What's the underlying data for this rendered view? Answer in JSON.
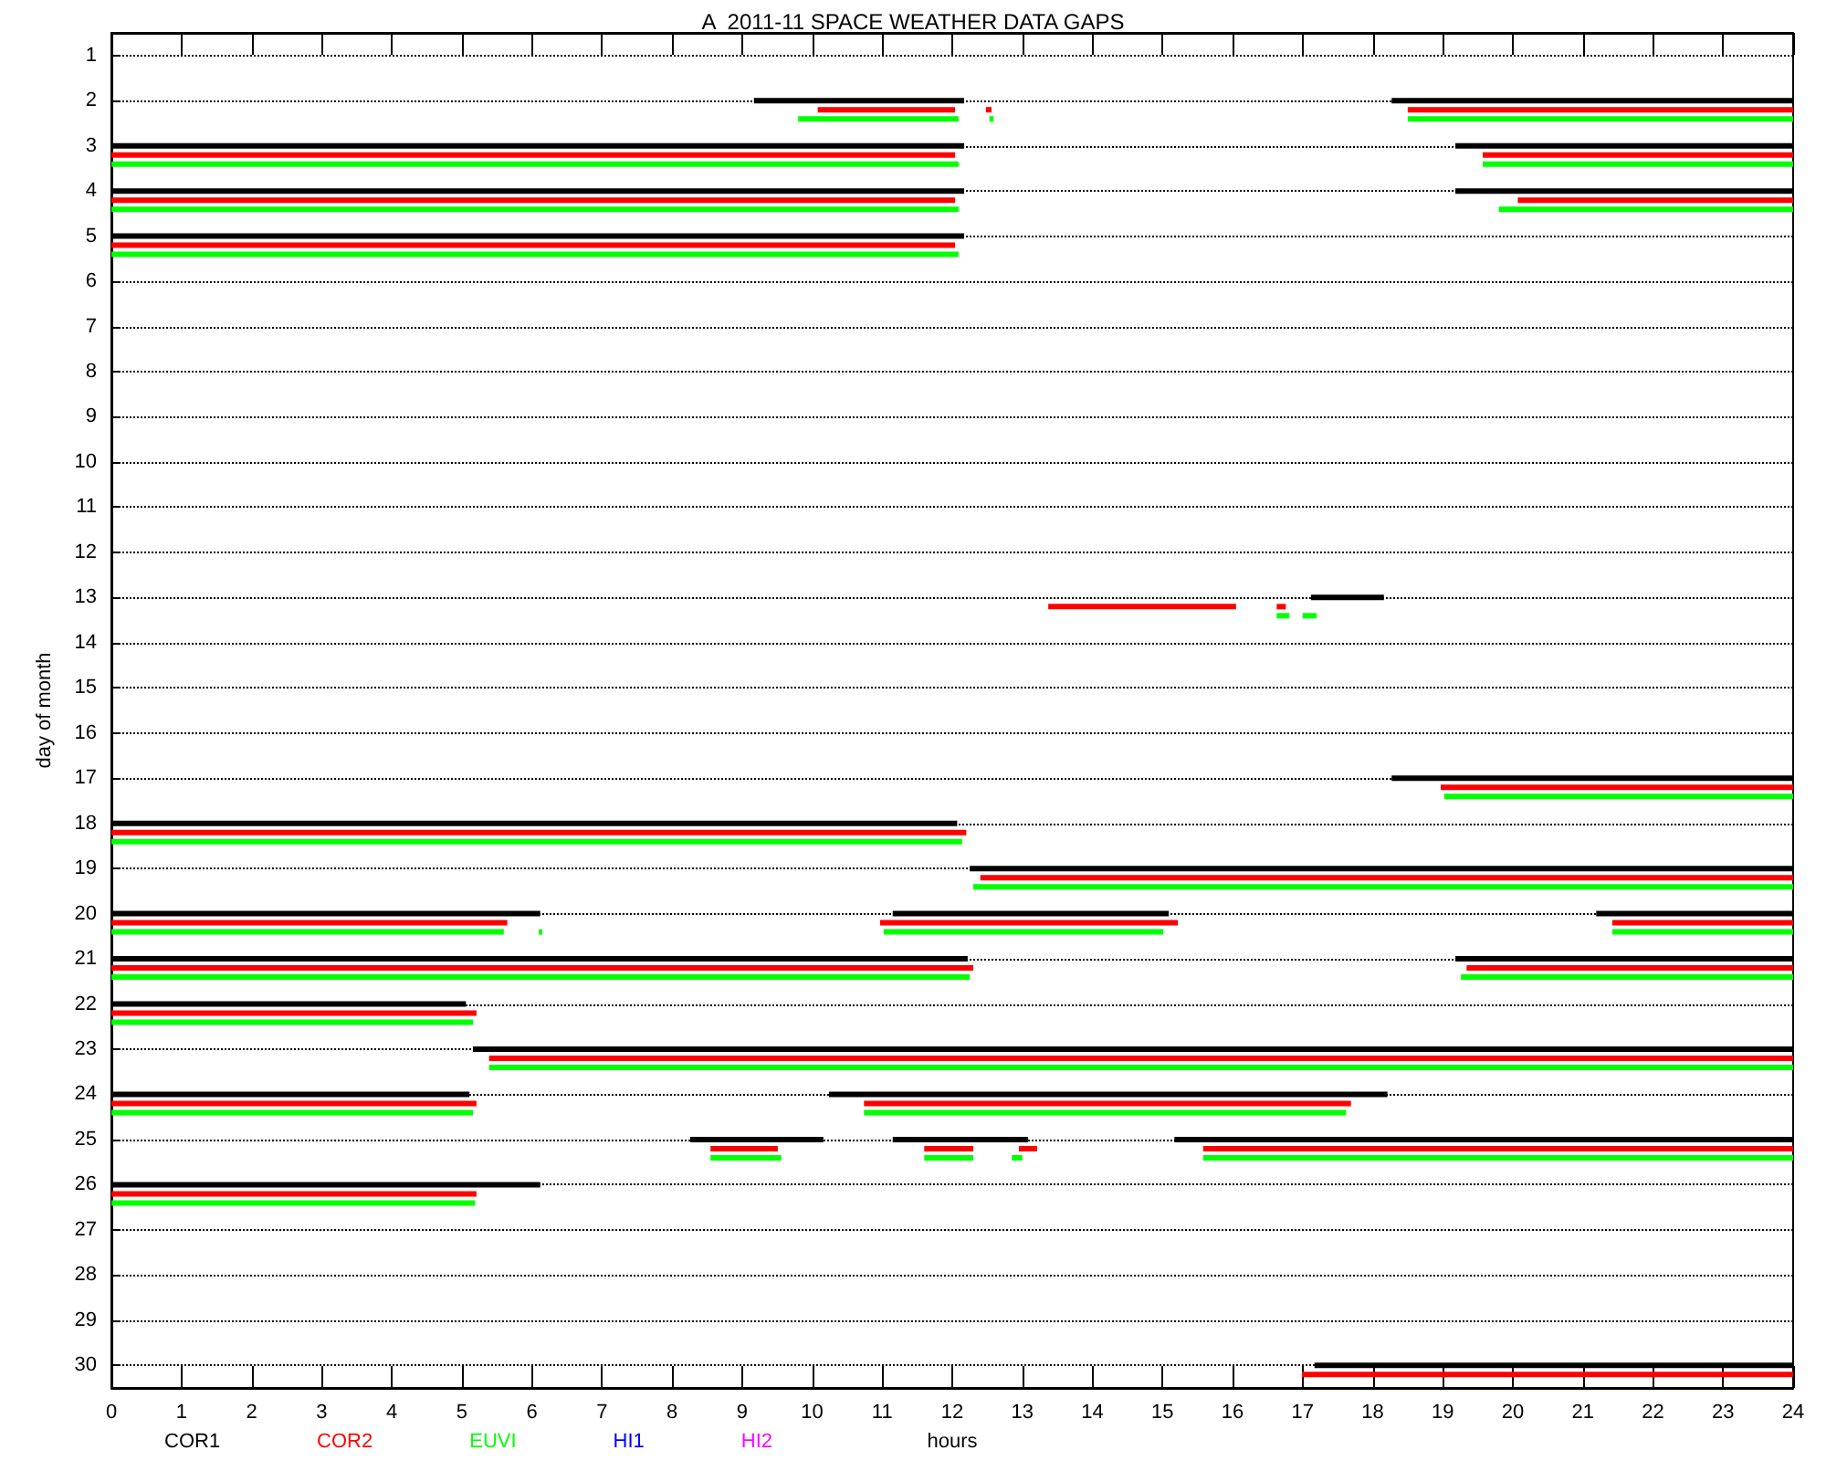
{
  "chart_data": {
    "type": "bar",
    "orientation": "horizontal",
    "title": "A  2011-11 SPACE WEATHER DATA GAPS",
    "xlabel": "hours",
    "ylabel": "day of month",
    "categories": [
      "1",
      "2",
      "3",
      "4",
      "5",
      "6",
      "7",
      "8",
      "9",
      "10",
      "11",
      "12",
      "13",
      "14",
      "15",
      "16",
      "17",
      "18",
      "19",
      "20",
      "21",
      "22",
      "23",
      "24",
      "25",
      "26",
      "27",
      "28",
      "29",
      "30"
    ],
    "xlim": [
      0,
      24
    ],
    "xticks": [
      0,
      1,
      2,
      3,
      4,
      5,
      6,
      7,
      8,
      9,
      10,
      11,
      12,
      13,
      14,
      15,
      16,
      17,
      18,
      19,
      20,
      21,
      22,
      23,
      24
    ],
    "grid": "y",
    "legend": "bottom",
    "series": [
      {
        "name": "COR1",
        "color": "#000000",
        "values": [
          null,
          3,
          12.17,
          12.17,
          12.17,
          null,
          null,
          null,
          null,
          null,
          null,
          null,
          1.04,
          null,
          null,
          null,
          5.73,
          12.07,
          11.75,
          6.12,
          12.22,
          5.06,
          18.84,
          5.11,
          1.9,
          6.12,
          null,
          null,
          null,
          6.83
        ],
        "base": [
          null,
          9.17,
          0,
          0,
          0,
          null,
          null,
          null,
          null,
          null,
          null,
          null,
          17.12,
          null,
          null,
          null,
          18.27,
          0,
          12.25,
          0,
          0,
          0,
          5.16,
          0,
          8.26,
          0,
          null,
          null,
          null,
          17.17
        ]
      },
      {
        "color": "#000000",
        "values": [
          null,
          5.73,
          4.82,
          4.82,
          null,
          null,
          null,
          null,
          null,
          null,
          null,
          null,
          null,
          null,
          null,
          null,
          null,
          null,
          null,
          3.94,
          4.82,
          null,
          null,
          7.97,
          1.93,
          null,
          null,
          null,
          null,
          null
        ],
        "base": [
          null,
          18.27,
          19.18,
          19.18,
          null,
          null,
          null,
          null,
          null,
          null,
          null,
          null,
          null,
          null,
          null,
          null,
          null,
          null,
          null,
          11.15,
          19.18,
          null,
          null,
          10.24,
          11.15,
          null,
          null,
          null,
          null,
          null
        ]
      },
      {
        "color": "#000000",
        "values": [
          null,
          null,
          null,
          null,
          null,
          null,
          null,
          null,
          null,
          null,
          null,
          null,
          null,
          null,
          null,
          null,
          null,
          null,
          null,
          2.81,
          null,
          null,
          null,
          null,
          8.83,
          null,
          null,
          null,
          null,
          null
        ],
        "base": [
          null,
          null,
          null,
          null,
          null,
          null,
          null,
          null,
          null,
          null,
          null,
          null,
          null,
          null,
          null,
          null,
          null,
          null,
          null,
          21.19,
          null,
          null,
          null,
          null,
          15.17,
          null,
          null,
          null,
          null,
          null
        ]
      },
      {
        "name": "COR2",
        "color": "#ff0000",
        "values": [
          null,
          1.96,
          12.04,
          12.04,
          12.04,
          null,
          null,
          null,
          null,
          null,
          null,
          null,
          2.68,
          null,
          null,
          null,
          5.03,
          12.2,
          11.6,
          5.65,
          12.3,
          5.21,
          18.61,
          5.21,
          0.96,
          5.21,
          null,
          null,
          null,
          7.01
        ],
        "base": [
          null,
          10.08,
          0,
          0,
          0,
          null,
          null,
          null,
          null,
          null,
          null,
          null,
          13.37,
          null,
          null,
          null,
          18.97,
          0,
          12.4,
          0,
          0,
          0,
          5.39,
          0,
          8.55,
          0,
          null,
          null,
          null,
          16.99
        ]
      },
      {
        "color": "#ff0000",
        "values": [
          null,
          0.08,
          4.43,
          3.93,
          null,
          null,
          null,
          null,
          null,
          null,
          null,
          null,
          0.13,
          null,
          null,
          null,
          null,
          null,
          null,
          4.25,
          4.66,
          null,
          null,
          6.95,
          0.7,
          null,
          null,
          null,
          null,
          null
        ],
        "base": [
          null,
          12.48,
          19.57,
          20.07,
          null,
          null,
          null,
          null,
          null,
          null,
          null,
          null,
          16.63,
          null,
          null,
          null,
          null,
          null,
          null,
          10.97,
          19.34,
          null,
          null,
          10.74,
          11.6,
          null,
          null,
          null,
          null,
          null
        ]
      },
      {
        "color": "#ff0000",
        "values": [
          null,
          5.5,
          null,
          null,
          null,
          null,
          null,
          null,
          null,
          null,
          null,
          null,
          null,
          null,
          null,
          null,
          null,
          null,
          null,
          2.58,
          null,
          null,
          null,
          null,
          0.26,
          null,
          null,
          null,
          null,
          null
        ],
        "base": [
          null,
          18.5,
          null,
          null,
          null,
          null,
          null,
          null,
          null,
          null,
          null,
          null,
          null,
          null,
          null,
          null,
          null,
          null,
          null,
          21.42,
          null,
          null,
          null,
          null,
          12.95,
          null,
          null,
          null,
          null,
          null
        ]
      },
      {
        "color": "#ff0000",
        "values": [
          null,
          null,
          null,
          null,
          null,
          null,
          null,
          null,
          null,
          null,
          null,
          null,
          null,
          null,
          null,
          null,
          null,
          null,
          null,
          null,
          null,
          null,
          null,
          null,
          8.42,
          null,
          null,
          null,
          null,
          null
        ],
        "base": [
          null,
          null,
          null,
          null,
          null,
          null,
          null,
          null,
          null,
          null,
          null,
          null,
          null,
          null,
          null,
          null,
          null,
          null,
          null,
          null,
          null,
          null,
          null,
          null,
          15.58,
          null,
          null,
          null,
          null,
          null
        ]
      },
      {
        "name": "EUVI",
        "color": "#00ff00",
        "values": [
          null,
          2.29,
          12.09,
          12.09,
          12.09,
          null,
          null,
          null,
          null,
          null,
          null,
          null,
          0.18,
          null,
          null,
          null,
          4.98,
          12.14,
          11.7,
          5.6,
          12.25,
          5.16,
          18.61,
          5.16,
          1.01,
          5.19,
          null,
          null,
          null,
          null
        ],
        "base": [
          null,
          9.8,
          0,
          0,
          0,
          null,
          null,
          null,
          null,
          null,
          null,
          null,
          16.63,
          null,
          null,
          null,
          19.02,
          0,
          12.3,
          0,
          0,
          0,
          5.39,
          0,
          8.55,
          0,
          null,
          null,
          null,
          null
        ]
      },
      {
        "color": "#00ff00",
        "values": [
          null,
          0.06,
          4.43,
          4.2,
          null,
          null,
          null,
          null,
          null,
          null,
          null,
          null,
          0.2,
          null,
          null,
          null,
          null,
          null,
          null,
          0.05,
          4.74,
          null,
          null,
          6.88,
          0.7,
          null,
          null,
          null,
          null,
          null
        ],
        "base": [
          null,
          12.53,
          19.57,
          19.8,
          null,
          null,
          null,
          null,
          null,
          null,
          null,
          null,
          17,
          null,
          null,
          null,
          null,
          null,
          null,
          6.1,
          19.26,
          null,
          null,
          10.74,
          11.6,
          null,
          null,
          null,
          null,
          null
        ]
      },
      {
        "color": "#00ff00",
        "values": [
          null,
          5.5,
          null,
          null,
          null,
          null,
          null,
          null,
          null,
          null,
          null,
          null,
          null,
          null,
          null,
          null,
          null,
          null,
          null,
          3.99,
          null,
          null,
          null,
          null,
          0.15,
          null,
          null,
          null,
          null,
          null
        ],
        "base": [
          null,
          18.5,
          null,
          null,
          null,
          null,
          null,
          null,
          null,
          null,
          null,
          null,
          null,
          null,
          null,
          null,
          null,
          null,
          null,
          11.02,
          null,
          null,
          null,
          null,
          12.85,
          null,
          null,
          null,
          null,
          null
        ]
      },
      {
        "color": "#00ff00",
        "values": [
          null,
          null,
          null,
          null,
          null,
          null,
          null,
          null,
          null,
          null,
          null,
          null,
          null,
          null,
          null,
          null,
          null,
          null,
          null,
          2.58,
          null,
          null,
          null,
          null,
          8.42,
          null,
          null,
          null,
          null,
          null
        ],
        "base": [
          null,
          null,
          null,
          null,
          null,
          null,
          null,
          null,
          null,
          null,
          null,
          null,
          null,
          null,
          null,
          null,
          null,
          null,
          null,
          21.42,
          null,
          null,
          null,
          null,
          15.58,
          null,
          null,
          null,
          null,
          null
        ]
      },
      {
        "name": "HI1",
        "color": "#0000ff",
        "values": [
          null,
          null,
          null,
          null,
          null,
          null,
          null,
          null,
          null,
          null,
          null,
          null,
          null,
          null,
          null,
          null,
          null,
          null,
          null,
          null,
          null,
          null,
          null,
          null,
          null,
          null,
          null,
          null,
          null,
          null
        ]
      },
      {
        "name": "HI2",
        "color": "#ff00ff",
        "values": [
          null,
          null,
          null,
          null,
          null,
          null,
          null,
          null,
          null,
          null,
          null,
          null,
          null,
          null,
          null,
          null,
          null,
          null,
          null,
          null,
          null,
          null,
          null,
          null,
          null,
          null,
          null,
          null,
          null,
          null
        ]
      }
    ]
  }
}
